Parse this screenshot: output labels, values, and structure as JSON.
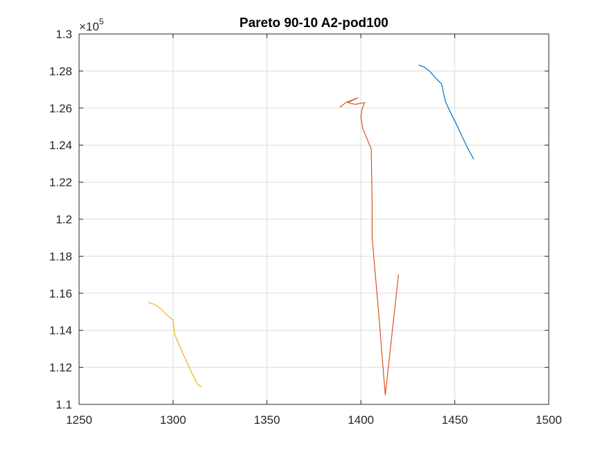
{
  "chart_data": {
    "type": "line",
    "title": "Pareto 90-10 A2-pod100",
    "xlabel": "",
    "ylabel": "",
    "xlim": [
      1250,
      1500
    ],
    "ylim": [
      110000,
      130000
    ],
    "x_ticks": [
      1250,
      1300,
      1350,
      1400,
      1450,
      1500
    ],
    "x_tick_labels": [
      "1250",
      "1300",
      "1350",
      "1400",
      "1450",
      "1500"
    ],
    "y_ticks": [
      110000,
      112000,
      114000,
      116000,
      118000,
      120000,
      122000,
      124000,
      126000,
      128000,
      130000
    ],
    "y_tick_labels": [
      "1.1",
      "1.12",
      "1.14",
      "1.16",
      "1.18",
      "1.2",
      "1.22",
      "1.24",
      "1.26",
      "1.28",
      "1.3"
    ],
    "y_exponent_base": "×10",
    "y_exponent_power": "5",
    "grid": true,
    "series": [
      {
        "color": "#0072BD",
        "x": [
          1431,
          1434,
          1437,
          1440,
          1443,
          1445,
          1448,
          1451,
          1454,
          1457,
          1460
        ],
        "y": [
          128320,
          128200,
          127950,
          127600,
          127300,
          126350,
          125700,
          125100,
          124450,
          123800,
          123250
        ]
      },
      {
        "color": "#D95319",
        "x": [
          1420,
          1413,
          1409,
          1406,
          1406,
          1405.5,
          1401,
          1400,
          1400.5,
          1402,
          1397,
          1393,
          1398.5,
          1392,
          1389
        ],
        "y": [
          117000,
          110500,
          115500,
          119000,
          121000,
          123800,
          124900,
          125500,
          125900,
          126300,
          126200,
          126300,
          126550,
          126300,
          126050
        ]
      },
      {
        "color": "#EDB120",
        "x": [
          1287,
          1290,
          1293,
          1296,
          1300,
          1301,
          1304,
          1307,
          1310,
          1313,
          1315
        ],
        "y": [
          115500,
          115400,
          115200,
          114900,
          114550,
          113750,
          113050,
          112350,
          111700,
          111100,
          110950
        ]
      }
    ]
  }
}
